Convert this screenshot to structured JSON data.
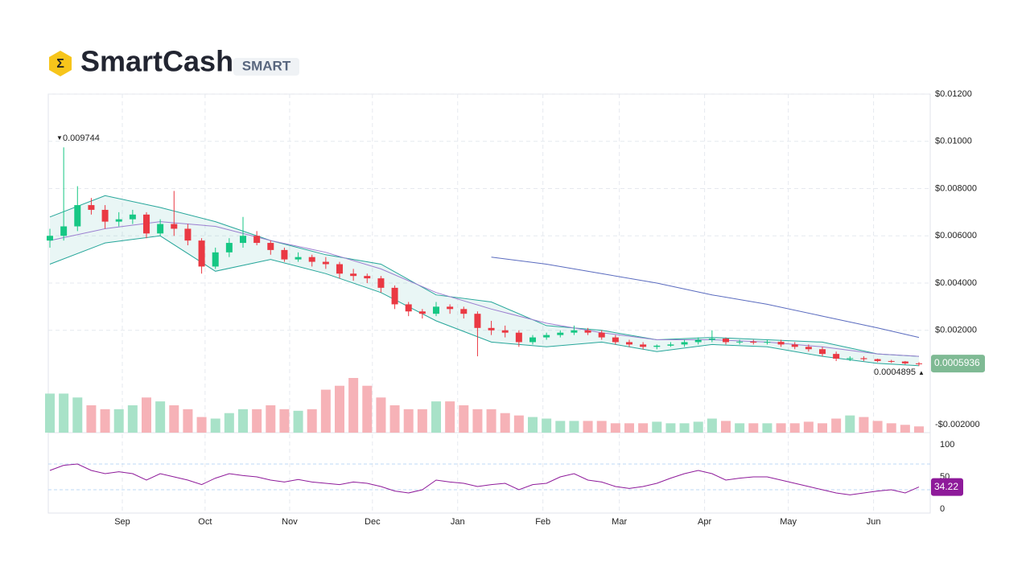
{
  "chart_data": {
    "type": "candlestick",
    "title": "SmartCash",
    "symbol": "SMART",
    "open": [
      0.0058,
      0.006,
      0.0064,
      0.0073,
      0.0071,
      0.0066,
      0.0067,
      0.0069,
      0.0061,
      0.0065,
      0.0063,
      0.0058,
      0.0047,
      0.0053,
      0.0057,
      0.006,
      0.0057,
      0.0054,
      0.005,
      0.0051,
      0.0049,
      0.0048,
      0.0044,
      0.0043,
      0.0042,
      0.0038,
      0.0031,
      0.0028,
      0.0027,
      0.003,
      0.0029,
      0.0027,
      0.0021,
      0.002,
      0.0019,
      0.0015,
      0.0017,
      0.0018,
      0.0019,
      0.002,
      0.0019,
      0.0017,
      0.0015,
      0.0014,
      0.0013,
      0.00135,
      0.0014,
      0.0015,
      0.0016,
      0.00165,
      0.0015,
      0.00152,
      0.00148,
      0.00151,
      0.0014,
      0.0013,
      0.0012,
      0.001,
      0.0008,
      0.00082,
      0.00078,
      0.0007,
      0.00068,
      0.0006
    ],
    "high": [
      0.0063,
      0.009744,
      0.0081,
      0.0076,
      0.0073,
      0.007,
      0.0071,
      0.007,
      0.0067,
      0.0079,
      0.0065,
      0.0059,
      0.0055,
      0.0059,
      0.0068,
      0.0062,
      0.0058,
      0.0055,
      0.0053,
      0.0052,
      0.0051,
      0.0049,
      0.0046,
      0.0044,
      0.0043,
      0.0039,
      0.0032,
      0.0029,
      0.0032,
      0.0031,
      0.003,
      0.0028,
      0.0024,
      0.0022,
      0.002,
      0.0018,
      0.0019,
      0.002,
      0.0022,
      0.0021,
      0.002,
      0.0018,
      0.0016,
      0.0015,
      0.0014,
      0.0015,
      0.0016,
      0.0017,
      0.002,
      0.0017,
      0.0016,
      0.0016,
      0.0016,
      0.0016,
      0.0015,
      0.0014,
      0.0013,
      0.0011,
      0.0009,
      0.0009,
      0.0008,
      0.00075,
      0.0007,
      0.00065
    ],
    "low": [
      0.0055,
      0.0058,
      0.0062,
      0.0069,
      0.0063,
      0.0064,
      0.0065,
      0.0059,
      0.006,
      0.006,
      0.0056,
      0.0044,
      0.0046,
      0.0051,
      0.0055,
      0.0056,
      0.0052,
      0.0049,
      0.0049,
      0.0047,
      0.0046,
      0.0042,
      0.0041,
      0.004,
      0.0036,
      0.0029,
      0.0026,
      0.0025,
      0.0026,
      0.0027,
      0.0025,
      0.0009,
      0.0018,
      0.0017,
      0.0013,
      0.0014,
      0.0016,
      0.0017,
      0.0018,
      0.0018,
      0.0016,
      0.0014,
      0.0013,
      0.0012,
      0.0012,
      0.0013,
      0.0013,
      0.0014,
      0.0015,
      0.0014,
      0.0014,
      0.0014,
      0.0014,
      0.0013,
      0.0012,
      0.0011,
      0.0009,
      0.0007,
      0.0007,
      0.0007,
      0.00065,
      0.00062,
      0.00055,
      0.0004895
    ],
    "close": [
      0.006,
      0.0064,
      0.0073,
      0.0071,
      0.0066,
      0.0067,
      0.0069,
      0.0061,
      0.0065,
      0.0063,
      0.0058,
      0.0047,
      0.0053,
      0.0057,
      0.006,
      0.0057,
      0.0054,
      0.005,
      0.0051,
      0.0049,
      0.0048,
      0.0044,
      0.0043,
      0.0042,
      0.0038,
      0.0031,
      0.0028,
      0.0027,
      0.003,
      0.0029,
      0.0027,
      0.0021,
      0.002,
      0.0019,
      0.0015,
      0.0017,
      0.0018,
      0.0019,
      0.002,
      0.0019,
      0.0017,
      0.0015,
      0.0014,
      0.0013,
      0.00135,
      0.0014,
      0.0015,
      0.0016,
      0.00165,
      0.0015,
      0.00152,
      0.00148,
      0.00151,
      0.0014,
      0.0013,
      0.0012,
      0.001,
      0.0008,
      0.00082,
      0.00078,
      0.0007,
      0.00068,
      0.0006,
      0.0005936
    ],
    "volume": [
      50,
      50,
      45,
      35,
      30,
      30,
      35,
      45,
      40,
      35,
      30,
      20,
      18,
      25,
      30,
      30,
      35,
      30,
      28,
      30,
      55,
      60,
      70,
      60,
      45,
      35,
      30,
      30,
      40,
      40,
      35,
      30,
      30,
      25,
      22,
      20,
      18,
      15,
      15,
      15,
      15,
      12,
      12,
      12,
      14,
      12,
      12,
      14,
      18,
      15,
      12,
      12,
      12,
      12,
      12,
      14,
      12,
      18,
      22,
      20,
      15,
      12,
      10,
      8
    ],
    "rsi": [
      60,
      68,
      70,
      60,
      55,
      58,
      55,
      45,
      55,
      50,
      45,
      38,
      48,
      55,
      52,
      50,
      45,
      42,
      46,
      42,
      40,
      38,
      42,
      40,
      35,
      28,
      25,
      30,
      45,
      42,
      40,
      35,
      38,
      40,
      30,
      38,
      40,
      50,
      55,
      45,
      42,
      35,
      32,
      35,
      40,
      48,
      55,
      60,
      55,
      45,
      48,
      50,
      50,
      45,
      40,
      35,
      30,
      25,
      22,
      25,
      28,
      30,
      25,
      34.22
    ],
    "band_x": [
      0,
      4,
      8,
      12,
      16,
      20,
      24,
      28,
      32,
      36,
      40,
      44,
      48,
      52,
      56,
      60,
      63
    ],
    "upper_band": [
      0.0068,
      0.0077,
      0.0072,
      0.0066,
      0.0058,
      0.0052,
      0.0048,
      0.0035,
      0.0032,
      0.0022,
      0.002,
      0.0016,
      0.0017,
      0.0016,
      0.0015,
      0.001,
      0.0009
    ],
    "lower_band": [
      0.0048,
      0.0057,
      0.006,
      0.0045,
      0.005,
      0.0044,
      0.0036,
      0.0024,
      0.0015,
      0.0013,
      0.0015,
      0.0011,
      0.0014,
      0.0013,
      0.0009,
      0.0006,
      0.0005
    ],
    "moving_average": [
      0.0058,
      0.0063,
      0.0066,
      0.0064,
      0.0058,
      0.0053,
      0.0046,
      0.0036,
      0.0029,
      0.0023,
      0.0019,
      0.0016,
      0.0016,
      0.0015,
      0.0013,
      0.001,
      0.0009
    ],
    "long_moving_average": [
      null,
      null,
      null,
      null,
      null,
      null,
      null,
      null,
      0.0051,
      0.0048,
      0.0044,
      0.004,
      0.0035,
      0.0031,
      0.0026,
      0.0021,
      0.0017
    ],
    "xlim": [
      0,
      63
    ],
    "xticks": [
      {
        "value": 5.25,
        "label": "Sep"
      },
      {
        "value": 11.25,
        "label": "Oct"
      },
      {
        "value": 17.38,
        "label": "Nov"
      },
      {
        "value": 23.38,
        "label": "Dec"
      },
      {
        "value": 29.56,
        "label": "Jan"
      },
      {
        "value": 35.74,
        "label": "Feb"
      },
      {
        "value": 41.28,
        "label": "Mar"
      },
      {
        "value": 47.46,
        "label": "Apr"
      },
      {
        "value": 53.53,
        "label": "May"
      },
      {
        "value": 59.71,
        "label": "Jun"
      }
    ],
    "ylim": [
      -0.0024,
      0.012
    ],
    "yticks": [
      {
        "value": 0.012,
        "label": "$0.01200"
      },
      {
        "value": 0.01,
        "label": "$0.01000"
      },
      {
        "value": 0.008,
        "label": "$0.008000"
      },
      {
        "value": 0.006,
        "label": "$0.006000"
      },
      {
        "value": 0.004,
        "label": "$0.004000"
      },
      {
        "value": 0.002,
        "label": "$0.002000"
      },
      {
        "value": -0.002,
        "label": "-$0.002000"
      }
    ],
    "rsi_lim": [
      0,
      100
    ],
    "rsi_ticks": [
      100,
      50,
      0
    ],
    "rsi_bands": [
      30,
      70
    ],
    "grid": true,
    "up_color": "#16c784",
    "down_color": "#ea3943",
    "volume_up_color": "#a8e2c8",
    "volume_down_color": "#f6b2b7",
    "band_color": "#26a69a",
    "ma_color": "#9b7fd0",
    "long_ma_color": "#5a6bbf",
    "rsi_color": "#8e1a9a"
  }
}
